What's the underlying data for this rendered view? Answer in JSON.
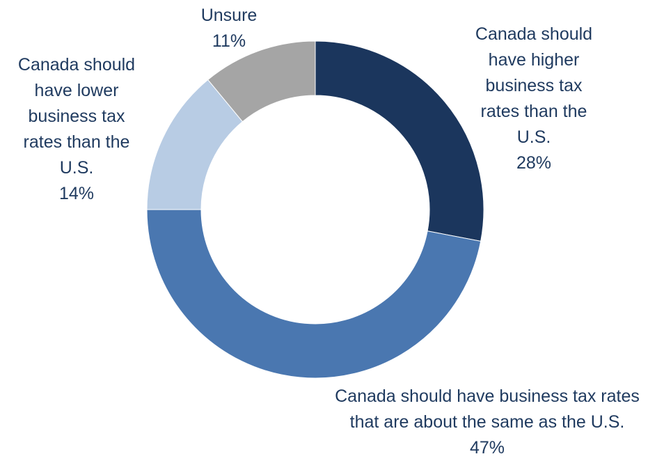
{
  "chart_data": {
    "type": "pie",
    "donut": true,
    "categories": [
      "Canada should have higher business tax rates than the U.S.",
      "Canada should have business tax rates that are about the same as the U.S.",
      "Canada should have lower business tax rates than the U.S.",
      "Unsure"
    ],
    "values": [
      28,
      47,
      14,
      11
    ],
    "value_labels": [
      "28%",
      "47%",
      "14%",
      "11%"
    ],
    "colors": [
      "#1b365d",
      "#4a77b0",
      "#b8cce4",
      "#a5a5a5"
    ],
    "label_color": "#1f3a5f",
    "start_angle_deg": 0,
    "direction": "clockwise",
    "legend": "none",
    "slice_labels": [
      {
        "text": "Canada should\nhave higher\nbusiness tax\nrates than the\nU.S.",
        "value": "28%"
      },
      {
        "text": "Canada should have business tax rates\nthat are about the same as the U.S.",
        "value": "47%"
      },
      {
        "text": "Canada should\nhave lower\nbusiness tax\nrates than the\nU.S.",
        "value": "14%"
      },
      {
        "text": "Unsure",
        "value": "11%"
      }
    ]
  }
}
